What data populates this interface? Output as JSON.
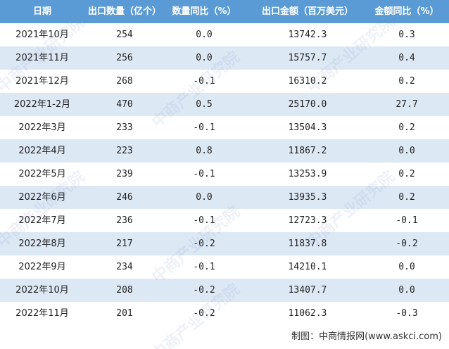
{
  "table": {
    "header": [
      "日期",
      "出口数量（亿个）",
      "数量同比（%）",
      "出口金额（百万美元）",
      "金额同比（%）"
    ],
    "rows": [
      [
        "2021年10月",
        "254",
        "0.0",
        "13742.3",
        "0.3"
      ],
      [
        "2021年11月",
        "256",
        "0.0",
        "15757.7",
        "0.4"
      ],
      [
        "2021年12月",
        "268",
        "-0.1",
        "16310.2",
        "0.2"
      ],
      [
        "2022年1-2月",
        "470",
        "0.5",
        "25170.0",
        "27.7"
      ],
      [
        "2022年3月",
        "233",
        "-0.1",
        "13504.3",
        "0.2"
      ],
      [
        "2022年4月",
        "223",
        "0.8",
        "11867.2",
        "0.0"
      ],
      [
        "2022年5月",
        "239",
        "-0.1",
        "13253.9",
        "0.2"
      ],
      [
        "2022年6月",
        "246",
        "0.0",
        "13935.3",
        "0.2"
      ],
      [
        "2022年7月",
        "236",
        "-0.1",
        "12723.3",
        "-0.1"
      ],
      [
        "2022年8月",
        "217",
        "-0.2",
        "11837.8",
        "-0.2"
      ],
      [
        "2022年9月",
        "234",
        "-0.1",
        "14210.1",
        "0.0"
      ],
      [
        "2022年10月",
        "208",
        "-0.2",
        "13407.7",
        "0.0"
      ],
      [
        "2022年11月",
        "201",
        "-0.2",
        "11062.3",
        "-0.3"
      ]
    ]
  },
  "footer": "制图：中商情报网(www.askci.com)",
  "watermark": "中商产业研究院"
}
